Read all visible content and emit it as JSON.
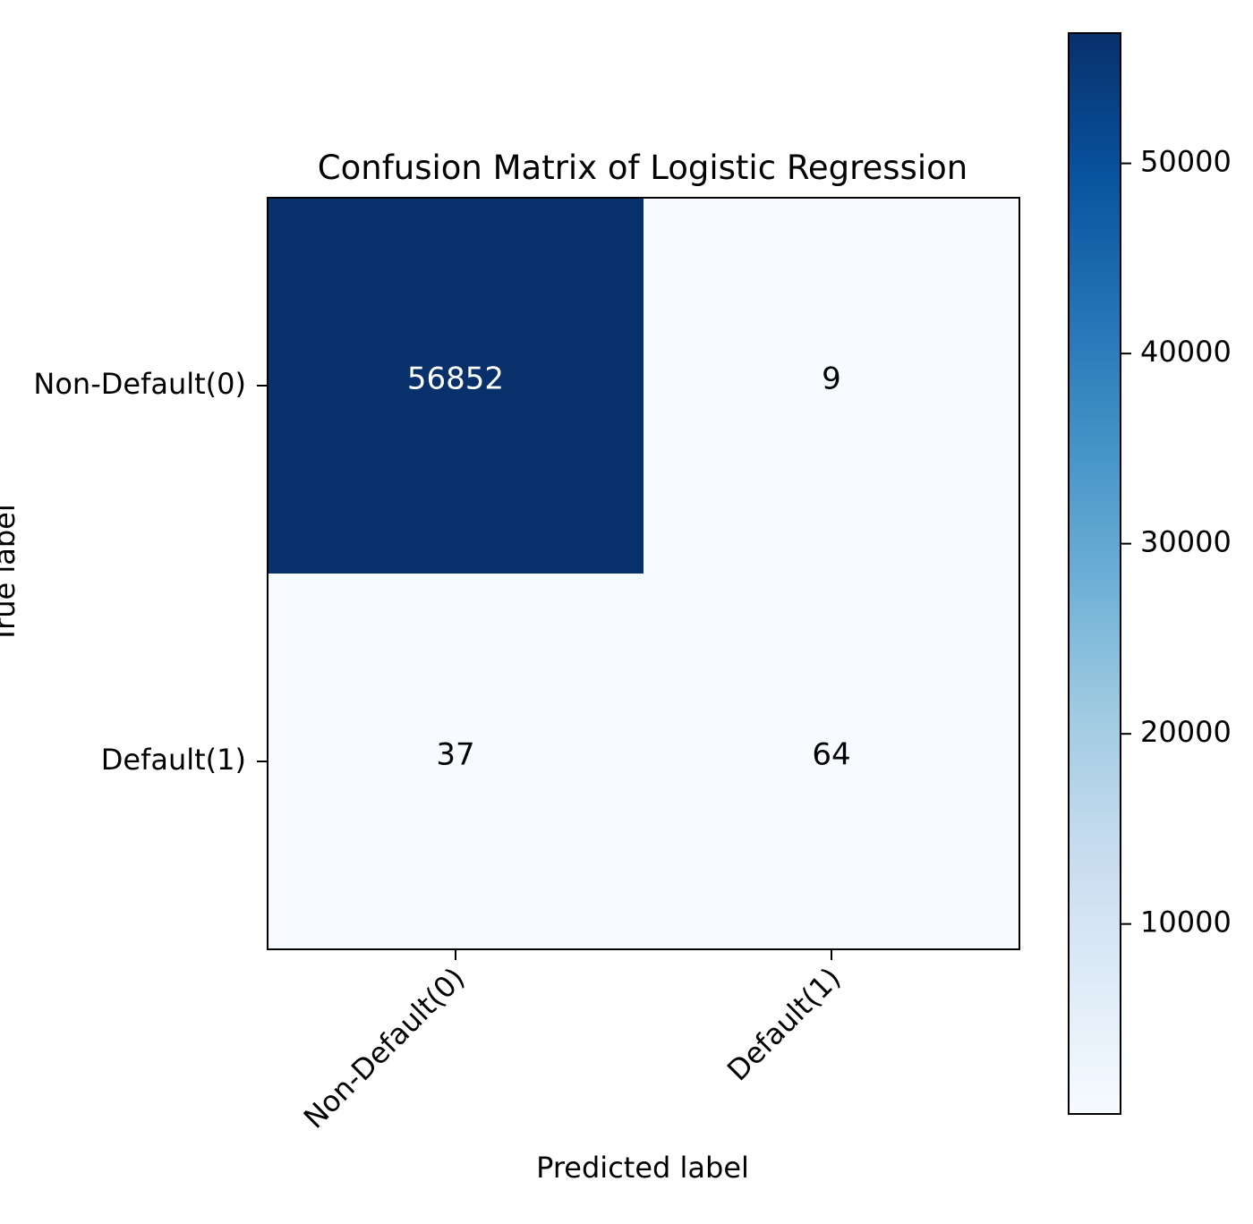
{
  "chart_data": {
    "type": "heatmap",
    "title": "Confusion Matrix of Logistic Regression",
    "xlabel": "Predicted label",
    "ylabel": "True label",
    "x_categories": [
      "Non-Default(0)",
      "Default(1)"
    ],
    "y_categories": [
      "Non-Default(0)",
      "Default(1)"
    ],
    "values": [
      [
        56852,
        9
      ],
      [
        37,
        64
      ]
    ],
    "colormap": "Blues",
    "color_low": "#f7fbff",
    "color_high": "#08306b",
    "colorbar": {
      "range": [
        9,
        56852
      ],
      "ticks": [
        10000,
        20000,
        30000,
        40000,
        50000
      ],
      "tick_labels": [
        "10000",
        "20000",
        "30000",
        "40000",
        "50000"
      ]
    },
    "cell_text_colors": {
      "dark": "#ffffff",
      "light": "#000000"
    },
    "grid": false,
    "legend": "colorbar-right"
  }
}
